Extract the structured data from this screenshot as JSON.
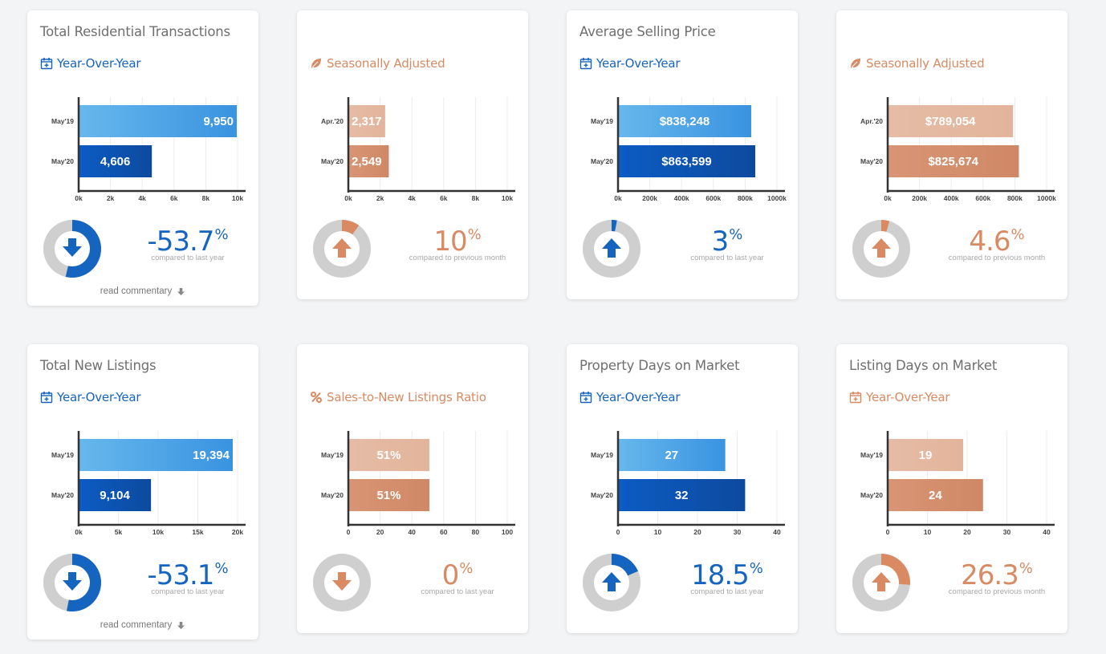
{
  "colors": {
    "blue": "#1565c0",
    "blue_light": "#5db2ea",
    "blue_dark": "#0e58b8",
    "orange": "#d98a62",
    "orange_light": "#e5baa3",
    "orange_dark": "#d18b6a",
    "gauge_bg": "#cfcfcf"
  },
  "cards": [
    {
      "title": "Total Residential Transactions",
      "subtitle": "Year-Over-Year",
      "subtitle_icon": "calendar-plus-icon",
      "theme": "blue",
      "percent": "-53.7",
      "percent_label": "compared to last year",
      "direction": "down",
      "gauge_fraction": 0.537,
      "commentary": "read commentary",
      "chart_data": {
        "type": "bar",
        "orientation": "horizontal",
        "categories": [
          "May'19",
          "May'20"
        ],
        "values": [
          9950,
          4606
        ],
        "value_labels": [
          "9,950",
          "4,606"
        ],
        "xlim": [
          0,
          10000
        ],
        "x_ticks": [
          "0k",
          "2k",
          "4k",
          "6k",
          "8k",
          "10k"
        ]
      }
    },
    {
      "title": "",
      "subtitle": "Seasonally Adjusted",
      "subtitle_icon": "leaf-icon",
      "theme": "orange",
      "percent": "10",
      "percent_label": "compared to previous month",
      "direction": "up",
      "gauge_fraction": 0.1,
      "commentary": "",
      "chart_data": {
        "type": "bar",
        "orientation": "horizontal",
        "categories": [
          "Apr.'20",
          "May'20"
        ],
        "values": [
          2317,
          2549
        ],
        "value_labels": [
          "2,317",
          "2,549"
        ],
        "xlim": [
          0,
          10000
        ],
        "x_ticks": [
          "0k",
          "2k",
          "4k",
          "6k",
          "8k",
          "10k"
        ]
      }
    },
    {
      "title": "Average Selling Price",
      "subtitle": "Year-Over-Year",
      "subtitle_icon": "calendar-plus-icon",
      "theme": "blue",
      "percent": "3",
      "percent_label": "compared to last year",
      "direction": "up",
      "gauge_fraction": 0.03,
      "commentary": "",
      "chart_data": {
        "type": "bar",
        "orientation": "horizontal",
        "categories": [
          "May'19",
          "May'20"
        ],
        "values": [
          838248,
          863599
        ],
        "value_labels": [
          "$838,248",
          "$863,599"
        ],
        "xlim": [
          0,
          1000000
        ],
        "x_ticks": [
          "0k",
          "200k",
          "400k",
          "600k",
          "800k",
          "1000k"
        ]
      }
    },
    {
      "title": "",
      "subtitle": "Seasonally Adjusted",
      "subtitle_icon": "leaf-icon",
      "theme": "orange",
      "percent": "4.6",
      "percent_label": "compared to previous month",
      "direction": "up",
      "gauge_fraction": 0.046,
      "commentary": "",
      "chart_data": {
        "type": "bar",
        "orientation": "horizontal",
        "categories": [
          "Apr.'20",
          "May'20"
        ],
        "values": [
          789054,
          825674
        ],
        "value_labels": [
          "$789,054",
          "$825,674"
        ],
        "xlim": [
          0,
          1000000
        ],
        "x_ticks": [
          "0k",
          "200k",
          "400k",
          "600k",
          "800k",
          "1000k"
        ]
      }
    },
    {
      "title": "Total New Listings",
      "subtitle": "Year-Over-Year",
      "subtitle_icon": "calendar-plus-icon",
      "theme": "blue",
      "percent": "-53.1",
      "percent_label": "compared to last year",
      "direction": "down",
      "gauge_fraction": 0.531,
      "commentary": "read commentary",
      "chart_data": {
        "type": "bar",
        "orientation": "horizontal",
        "categories": [
          "May'19",
          "May'20"
        ],
        "values": [
          19394,
          9104
        ],
        "value_labels": [
          "19,394",
          "9,104"
        ],
        "xlim": [
          0,
          20000
        ],
        "x_ticks": [
          "0k",
          "5k",
          "10k",
          "15k",
          "20k"
        ]
      }
    },
    {
      "title": "",
      "subtitle": "Sales-to-New Listings Ratio",
      "subtitle_icon": "percent-icon",
      "theme": "orange",
      "percent": "0",
      "percent_label": "compared to last year",
      "direction": "down",
      "gauge_fraction": 0,
      "commentary": "",
      "chart_data": {
        "type": "bar",
        "orientation": "horizontal",
        "categories": [
          "May'19",
          "May'20"
        ],
        "values": [
          51,
          51
        ],
        "value_labels": [
          "51%",
          "51%"
        ],
        "xlim": [
          0,
          100
        ],
        "x_ticks": [
          "0",
          "20",
          "40",
          "60",
          "80",
          "100"
        ]
      }
    },
    {
      "title": "Property Days on Market",
      "subtitle": "Year-Over-Year",
      "subtitle_icon": "calendar-plus-icon",
      "theme": "blue",
      "percent": "18.5",
      "percent_label": "compared to last year",
      "direction": "up",
      "gauge_fraction": 0.185,
      "commentary": "",
      "chart_data": {
        "type": "bar",
        "orientation": "horizontal",
        "categories": [
          "May'19",
          "May'20"
        ],
        "values": [
          27,
          32
        ],
        "value_labels": [
          "27",
          "32"
        ],
        "xlim": [
          0,
          40
        ],
        "x_ticks": [
          "0",
          "10",
          "20",
          "30",
          "40"
        ]
      }
    },
    {
      "title": "Listing Days on Market",
      "subtitle": "Year-Over-Year",
      "subtitle_icon": "calendar-plus-icon",
      "theme": "orange",
      "percent": "26.3",
      "percent_label": "compared to previous month",
      "direction": "up",
      "gauge_fraction": 0.263,
      "commentary": "",
      "chart_data": {
        "type": "bar",
        "orientation": "horizontal",
        "categories": [
          "May'19",
          "May'20"
        ],
        "values": [
          19,
          24
        ],
        "value_labels": [
          "19",
          "24"
        ],
        "xlim": [
          0,
          40
        ],
        "x_ticks": [
          "0",
          "10",
          "20",
          "30",
          "40"
        ]
      }
    }
  ]
}
